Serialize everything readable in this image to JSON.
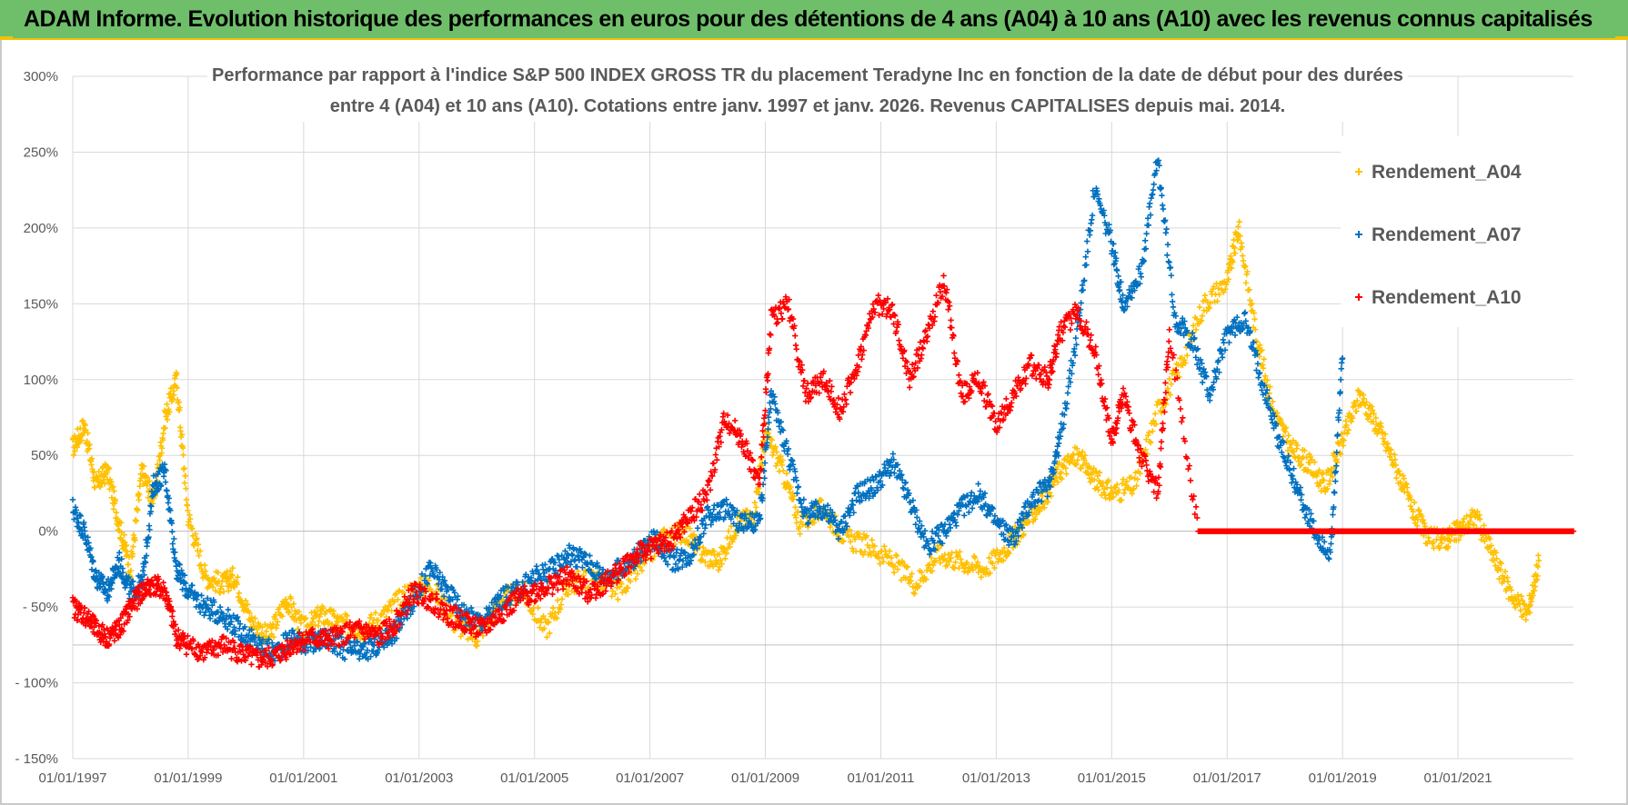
{
  "header": {
    "title": "ADAM Informe. Evolution historique des performances en euros pour des détentions de 4 ans (A04) à 10 ans (A10) avec les revenus connus capitalisés"
  },
  "colors": {
    "banner": "#6fbf6a",
    "A04": "#ffc000",
    "A07": "#0070c0",
    "A10": "#ff0000",
    "grid": "#d9d9d9",
    "text": "#595959"
  },
  "chart_data": {
    "type": "scatter",
    "title_lines": [
      "Performance par rapport à l'indice S&P 500 INDEX GROSS TR  du placement Teradyne Inc en fonction de la date de début pour des durées",
      "entre 4 (A04) et 10 ans (A10).  Cotations entre janv. 1997 et janv. 2026. Revenus CAPITALISES depuis mai. 2014."
    ],
    "xlabel": "",
    "ylabel": "",
    "x_range": [
      1997.0,
      2023.0
    ],
    "ylim": [
      -150,
      300
    ],
    "y_ticks": [
      300,
      250,
      200,
      150,
      100,
      50,
      0,
      -50,
      -100,
      -150
    ],
    "y_tick_labels": [
      "300%",
      "250%",
      "200%",
      "150%",
      "100%",
      "50%",
      "0%",
      "- 50%",
      "- 100%",
      "- 150%"
    ],
    "x_ticks": [
      1997,
      1999,
      2001,
      2003,
      2005,
      2007,
      2009,
      2011,
      2013,
      2015,
      2017,
      2019,
      2021
    ],
    "x_tick_labels": [
      "01/01/1997",
      "01/01/1999",
      "01/01/2001",
      "01/01/2003",
      "01/01/2005",
      "01/01/2007",
      "01/01/2009",
      "01/01/2011",
      "01/01/2013",
      "01/01/2015",
      "01/01/2017",
      "01/01/2019",
      "01/01/2021"
    ],
    "marker": "+",
    "legend_position": "top-right",
    "series": [
      {
        "name": "Rendement_A04",
        "color": "#ffc000",
        "x": [
          1997.0,
          1997.2,
          1997.4,
          1997.6,
          1997.8,
          1998.0,
          1998.2,
          1998.4,
          1998.6,
          1998.8,
          1999.0,
          1999.3,
          1999.6,
          1999.8,
          2000.1,
          2000.4,
          2000.7,
          2001.0,
          2001.3,
          2001.6,
          2002.0,
          2002.4,
          2002.8,
          2003.2,
          2003.6,
          2004.0,
          2004.4,
          2004.8,
          2005.2,
          2005.6,
          2006.0,
          2006.4,
          2006.8,
          2007.2,
          2007.6,
          2007.9,
          2008.2,
          2008.5,
          2008.8,
          2009.0,
          2009.3,
          2009.6,
          2010.0,
          2010.4,
          2010.8,
          2011.2,
          2011.6,
          2012.0,
          2012.4,
          2012.8,
          2013.2,
          2013.5,
          2013.8,
          2014.1,
          2014.4,
          2014.7,
          2015.0,
          2015.4,
          2015.8,
          2016.2,
          2016.6,
          2017.0,
          2017.2,
          2017.5,
          2017.8,
          2018.1,
          2018.4,
          2018.7,
          2019.0,
          2019.3,
          2019.6,
          2019.9,
          2020.2,
          2020.5,
          2020.8,
          2021.0,
          2021.3,
          2021.6,
          2021.9,
          2022.2,
          2022.4
        ],
        "y": [
          55,
          70,
          30,
          40,
          5,
          -25,
          40,
          20,
          75,
          100,
          10,
          -30,
          -35,
          -30,
          -60,
          -70,
          -45,
          -65,
          -55,
          -60,
          -65,
          -55,
          -40,
          -35,
          -60,
          -70,
          -45,
          -40,
          -65,
          -35,
          -30,
          -40,
          -25,
          -5,
          0,
          -15,
          -20,
          5,
          10,
          65,
          40,
          5,
          15,
          -5,
          -10,
          -20,
          -35,
          -15,
          -20,
          -25,
          -10,
          5,
          20,
          40,
          50,
          35,
          25,
          30,
          80,
          110,
          150,
          165,
          200,
          130,
          80,
          55,
          45,
          30,
          60,
          90,
          70,
          45,
          15,
          -5,
          -5,
          0,
          10,
          -15,
          -40,
          -55,
          -20
        ]
      },
      {
        "name": "Rendement_A07",
        "color": "#0070c0",
        "x": [
          1997.0,
          1997.2,
          1997.4,
          1997.6,
          1997.8,
          1998.0,
          1998.2,
          1998.4,
          1998.6,
          1998.8,
          1999.0,
          1999.3,
          1999.6,
          1999.9,
          2000.2,
          2000.5,
          2000.8,
          2001.1,
          2001.4,
          2001.7,
          2002.0,
          2002.3,
          2002.6,
          2002.9,
          2003.2,
          2003.5,
          2003.8,
          2004.1,
          2004.4,
          2004.7,
          2005.0,
          2005.3,
          2005.6,
          2005.9,
          2006.2,
          2006.5,
          2006.8,
          2007.1,
          2007.4,
          2007.7,
          2008.0,
          2008.3,
          2008.6,
          2008.9,
          2009.1,
          2009.4,
          2009.7,
          2010.0,
          2010.3,
          2010.6,
          2010.9,
          2011.2,
          2011.5,
          2011.8,
          2012.1,
          2012.4,
          2012.7,
          2013.0,
          2013.3,
          2013.6,
          2013.9,
          2014.1,
          2014.4,
          2014.7,
          2015.0,
          2015.2,
          2015.5,
          2015.8,
          2016.1,
          2016.4,
          2016.7,
          2017.0,
          2017.3,
          2017.6,
          2017.9,
          2018.2,
          2018.5,
          2018.8,
          2019.0
        ],
        "y": [
          15,
          0,
          -30,
          -40,
          -20,
          -40,
          -35,
          30,
          40,
          -25,
          -40,
          -50,
          -55,
          -65,
          -75,
          -80,
          -70,
          -75,
          -70,
          -78,
          -80,
          -75,
          -65,
          -45,
          -25,
          -40,
          -55,
          -60,
          -45,
          -40,
          -30,
          -25,
          -15,
          -20,
          -30,
          -25,
          -15,
          -5,
          -20,
          -15,
          10,
          15,
          5,
          5,
          90,
          50,
          10,
          15,
          0,
          25,
          30,
          45,
          20,
          -10,
          0,
          15,
          25,
          5,
          -5,
          20,
          30,
          60,
          130,
          225,
          190,
          150,
          170,
          245,
          140,
          125,
          90,
          130,
          140,
          100,
          60,
          30,
          0,
          -15,
          120
        ]
      },
      {
        "name": "Rendement_A10",
        "color": "#ff0000",
        "x": [
          1997.0,
          1997.2,
          1997.4,
          1997.6,
          1997.8,
          1998.0,
          1998.2,
          1998.4,
          1998.6,
          1998.8,
          1999.0,
          1999.3,
          1999.6,
          1999.9,
          2000.2,
          2000.5,
          2000.8,
          2001.1,
          2001.4,
          2001.7,
          2002.0,
          2002.3,
          2002.6,
          2002.9,
          2003.2,
          2003.5,
          2003.8,
          2004.1,
          2004.4,
          2004.7,
          2005.0,
          2005.3,
          2005.6,
          2005.9,
          2006.2,
          2006.5,
          2006.8,
          2007.1,
          2007.4,
          2007.7,
          2008.0,
          2008.3,
          2008.6,
          2008.9,
          2009.1,
          2009.4,
          2009.7,
          2010.0,
          2010.3,
          2010.6,
          2010.9,
          2011.2,
          2011.5,
          2011.8,
          2012.1,
          2012.4,
          2012.7,
          2013.0,
          2013.3,
          2013.6,
          2013.9,
          2014.1,
          2014.4,
          2014.7,
          2015.0,
          2015.2,
          2015.5,
          2015.8,
          2016.0,
          2016.5,
          2017.0,
          2017.5,
          2018.0,
          2018.5,
          2019.0,
          2019.5,
          2020.0,
          2020.5,
          2021.0,
          2021.5,
          2022.0,
          2022.5,
          2023.0
        ],
        "y": [
          -50,
          -55,
          -65,
          -70,
          -65,
          -50,
          -40,
          -35,
          -40,
          -70,
          -75,
          -80,
          -75,
          -80,
          -85,
          -83,
          -75,
          -70,
          -72,
          -68,
          -65,
          -70,
          -60,
          -40,
          -45,
          -55,
          -60,
          -65,
          -55,
          -45,
          -40,
          -35,
          -30,
          -40,
          -35,
          -25,
          -15,
          -10,
          -5,
          10,
          25,
          75,
          60,
          30,
          140,
          150,
          90,
          100,
          80,
          110,
          150,
          145,
          100,
          130,
          165,
          90,
          100,
          70,
          90,
          110,
          100,
          130,
          145,
          120,
          60,
          90,
          50,
          25,
          130,
          0,
          0,
          0,
          0,
          0,
          0,
          0,
          0,
          0,
          0,
          0,
          0,
          0,
          0
        ]
      }
    ]
  }
}
